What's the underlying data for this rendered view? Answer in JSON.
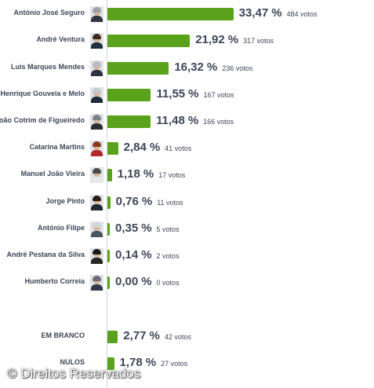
{
  "chart_data": {
    "type": "bar",
    "orientation": "horizontal",
    "value_unit": "%",
    "count_unit": "votos",
    "xlim": [
      0,
      50
    ],
    "grid": false,
    "legend": "none",
    "bar_color": "#5aa21c",
    "rows": [
      {
        "name": "António José Seguro",
        "value": 33.47,
        "label": "33,47",
        "votes": "484 votos",
        "photo": {
          "hair": "#9aa0a6",
          "suit": "#2f3542"
        }
      },
      {
        "name": "André Ventura",
        "value": 21.92,
        "label": "21,92",
        "votes": "317 votos",
        "photo": {
          "hair": "#3a2a20",
          "suit": "#22303f"
        }
      },
      {
        "name": "Luís Marques Mendes",
        "value": 16.32,
        "label": "16,32",
        "votes": "236 votos",
        "photo": {
          "hair": "#b8bcc2",
          "suit": "#2b3440"
        }
      },
      {
        "name": "Henrique Gouveia e Melo",
        "value": 11.55,
        "label": "11,55",
        "votes": "167 votos",
        "photo": {
          "hair": "#c5c8cc",
          "suit": "#1e2a3a"
        }
      },
      {
        "name": "João Cotrim de Figueiredo",
        "value": 11.48,
        "label": "11,48",
        "votes": "166 votos",
        "photo": {
          "hair": "#7d8288",
          "suit": "#2a2f36"
        }
      },
      {
        "name": "Catarina Martins",
        "value": 2.84,
        "label": "2,84",
        "votes": "41 votos",
        "photo": {
          "hair": "#8a3b1e",
          "suit": "#b3282d"
        }
      },
      {
        "name": "Manuel João Vieira",
        "value": 1.18,
        "label": "1,18",
        "votes": "17 votos",
        "photo": {
          "hair": "#4a4a4a",
          "suit": "#e8e8e8"
        }
      },
      {
        "name": "Jorge Pinto",
        "value": 0.76,
        "label": "0,76",
        "votes": "11 votos",
        "photo": {
          "hair": "#2b1d16",
          "suit": "#222a33"
        }
      },
      {
        "name": "António Filipe",
        "value": 0.35,
        "label": "0,35",
        "votes": "5 votos",
        "photo": {
          "hair": "#d2d4d6",
          "suit": "#4b5563"
        }
      },
      {
        "name": "André Pestana da Silva",
        "value": 0.14,
        "label": "0,14",
        "votes": "2 votos",
        "photo": {
          "hair": "#1a1a1a",
          "suit": "#262626"
        }
      },
      {
        "name": "Humberto Correia",
        "value": 0.0,
        "label": "0,00",
        "votes": "0 votos",
        "photo": {
          "hair": "#6b6f75",
          "suit": "#2e3a4a"
        }
      },
      {
        "name": "EM BRANCO",
        "value": 2.77,
        "label": "2,77",
        "votes": "42 votos"
      },
      {
        "name": "NULOS",
        "value": 1.78,
        "label": "1,78",
        "votes": "27 votos"
      }
    ]
  },
  "watermark": "© Direitos Reservados"
}
